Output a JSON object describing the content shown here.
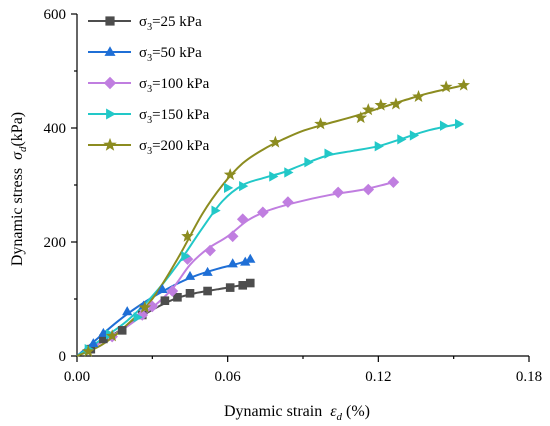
{
  "chart_data": {
    "type": "line",
    "title": "",
    "xlabel": "Dynamic strain",
    "xlabel_symbol": "ε",
    "xlabel_subscript": "d",
    "xlabel_unit": "(%)",
    "ylabel": "Dynamic stress",
    "ylabel_symbol": "σ",
    "ylabel_subscript": "d",
    "ylabel_unit": "(kPa)",
    "xlim": [
      0,
      0.18
    ],
    "ylim": [
      0,
      600
    ],
    "xticks": [
      0.0,
      0.06,
      0.12,
      0.18
    ],
    "xtick_labels": [
      "0.00",
      "0.06",
      "0.12",
      "0.18"
    ],
    "yticks": [
      0,
      200,
      400,
      600
    ],
    "ytick_labels": [
      "0",
      "200",
      "400",
      "600"
    ],
    "grid": false,
    "legend_position": "top-left",
    "series": [
      {
        "name": "σ3=25 kPa",
        "legend_symbol": "σ",
        "legend_subscript": "3",
        "legend_text": "=25 kPa",
        "color": "#4d4d4d",
        "marker": "square",
        "points": [
          [
            0.0055,
            12
          ],
          [
            0.0105,
            30
          ],
          [
            0.018,
            45
          ],
          [
            0.026,
            72
          ],
          [
            0.035,
            97
          ],
          [
            0.04,
            103
          ],
          [
            0.045,
            110
          ],
          [
            0.052,
            114
          ],
          [
            0.061,
            120
          ],
          [
            0.066,
            124
          ],
          [
            0.069,
            128
          ]
        ],
        "curve": [
          [
            0,
            0
          ],
          [
            0.008,
            20
          ],
          [
            0.016,
            42
          ],
          [
            0.025,
            68
          ],
          [
            0.033,
            88
          ],
          [
            0.04,
            102
          ],
          [
            0.048,
            111
          ],
          [
            0.056,
            117
          ],
          [
            0.064,
            123
          ],
          [
            0.069,
            128
          ]
        ]
      },
      {
        "name": "σ3=50 kPa",
        "legend_symbol": "σ",
        "legend_subscript": "3",
        "legend_text": "=50 kPa",
        "color": "#1f6fd6",
        "marker": "triangle-up",
        "points": [
          [
            0.0065,
            22
          ],
          [
            0.0105,
            40
          ],
          [
            0.02,
            78
          ],
          [
            0.0265,
            88
          ],
          [
            0.034,
            117
          ],
          [
            0.045,
            140
          ],
          [
            0.052,
            147
          ],
          [
            0.062,
            162
          ],
          [
            0.067,
            165
          ],
          [
            0.069,
            170
          ]
        ],
        "curve": [
          [
            0,
            0
          ],
          [
            0.008,
            30
          ],
          [
            0.016,
            60
          ],
          [
            0.024,
            86
          ],
          [
            0.032,
            108
          ],
          [
            0.04,
            127
          ],
          [
            0.048,
            142
          ],
          [
            0.056,
            153
          ],
          [
            0.064,
            162
          ],
          [
            0.069,
            169
          ]
        ]
      },
      {
        "name": "σ3=100 kPa",
        "legend_symbol": "σ",
        "legend_subscript": "3",
        "legend_text": "=100 kPa",
        "color": "#c07ee0",
        "marker": "diamond",
        "points": [
          [
            0.014,
            34
          ],
          [
            0.026,
            72
          ],
          [
            0.03,
            87
          ],
          [
            0.038,
            114
          ],
          [
            0.044,
            170
          ],
          [
            0.053,
            185
          ],
          [
            0.062,
            210
          ],
          [
            0.066,
            240
          ],
          [
            0.074,
            252
          ],
          [
            0.084,
            270
          ],
          [
            0.104,
            287
          ],
          [
            0.116,
            292
          ],
          [
            0.126,
            305
          ]
        ],
        "curve": [
          [
            0,
            0
          ],
          [
            0.01,
            25
          ],
          [
            0.02,
            52
          ],
          [
            0.03,
            85
          ],
          [
            0.038,
            118
          ],
          [
            0.045,
            160
          ],
          [
            0.052,
            188
          ],
          [
            0.06,
            210
          ],
          [
            0.068,
            238
          ],
          [
            0.076,
            255
          ],
          [
            0.086,
            268
          ],
          [
            0.1,
            282
          ],
          [
            0.114,
            292
          ],
          [
            0.126,
            305
          ]
        ]
      },
      {
        "name": "σ3=150 kPa",
        "legend_symbol": "σ",
        "legend_subscript": "3",
        "legend_text": "=150 kPa",
        "color": "#22c8c8",
        "marker": "triangle-right",
        "points": [
          [
            0.0045,
            12
          ],
          [
            0.013,
            38
          ],
          [
            0.024,
            68
          ],
          [
            0.043,
            175
          ],
          [
            0.055,
            255
          ],
          [
            0.06,
            295
          ],
          [
            0.066,
            298
          ],
          [
            0.078,
            315
          ],
          [
            0.084,
            322
          ],
          [
            0.092,
            340
          ],
          [
            0.1,
            355
          ],
          [
            0.12,
            368
          ],
          [
            0.129,
            380
          ],
          [
            0.134,
            387
          ],
          [
            0.146,
            404
          ],
          [
            0.152,
            407
          ]
        ],
        "curve": [
          [
            0,
            0
          ],
          [
            0.01,
            30
          ],
          [
            0.02,
            62
          ],
          [
            0.03,
            105
          ],
          [
            0.04,
            160
          ],
          [
            0.05,
            225
          ],
          [
            0.058,
            272
          ],
          [
            0.066,
            300
          ],
          [
            0.074,
            312
          ],
          [
            0.082,
            322
          ],
          [
            0.09,
            336
          ],
          [
            0.1,
            352
          ],
          [
            0.11,
            360
          ],
          [
            0.12,
            368
          ],
          [
            0.13,
            382
          ],
          [
            0.14,
            396
          ],
          [
            0.152,
            407
          ]
        ]
      },
      {
        "name": "σ3=200 kPa",
        "legend_symbol": "σ",
        "legend_subscript": "3",
        "legend_text": "=200 kPa",
        "color": "#8c8c20",
        "marker": "star",
        "points": [
          [
            0.0045,
            8
          ],
          [
            0.014,
            35
          ],
          [
            0.027,
            85
          ],
          [
            0.044,
            210
          ],
          [
            0.061,
            318
          ],
          [
            0.079,
            375
          ],
          [
            0.097,
            407
          ],
          [
            0.113,
            418
          ],
          [
            0.116,
            432
          ],
          [
            0.121,
            440
          ],
          [
            0.127,
            442
          ],
          [
            0.136,
            455
          ],
          [
            0.147,
            472
          ],
          [
            0.154,
            475
          ]
        ],
        "curve": [
          [
            0,
            0
          ],
          [
            0.01,
            20
          ],
          [
            0.02,
            55
          ],
          [
            0.03,
            100
          ],
          [
            0.04,
            170
          ],
          [
            0.05,
            250
          ],
          [
            0.058,
            300
          ],
          [
            0.066,
            338
          ],
          [
            0.074,
            362
          ],
          [
            0.082,
            380
          ],
          [
            0.09,
            395
          ],
          [
            0.1,
            408
          ],
          [
            0.11,
            420
          ],
          [
            0.12,
            434
          ],
          [
            0.13,
            448
          ],
          [
            0.14,
            461
          ],
          [
            0.154,
            475
          ]
        ]
      }
    ]
  }
}
